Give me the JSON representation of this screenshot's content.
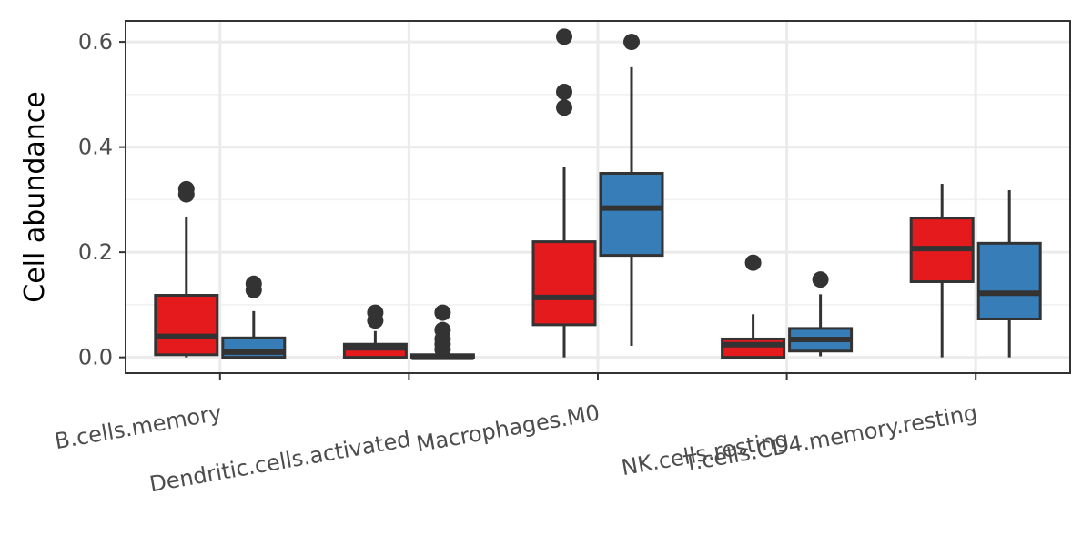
{
  "chart_data": {
    "type": "box",
    "ylabel": "Cell abundance",
    "xlabel": "",
    "ylim": [
      -0.03,
      0.64
    ],
    "y_ticks": [
      "0.0",
      "0.2",
      "0.4",
      "0.6"
    ],
    "y_tick_values": [
      0.0,
      0.2,
      0.4,
      0.6
    ],
    "grid": true,
    "legend": "none",
    "categories": [
      "B.cells.memory",
      "Dendritic.cells.activated",
      "Macrophages.M0",
      "NK.cells.resting",
      "T.cells.CD4.memory.resting"
    ],
    "series": [
      {
        "color": "#E41A1C",
        "boxes": [
          {
            "whisker_low": 0.0,
            "q1": 0.005,
            "median": 0.04,
            "q3": 0.118,
            "whisker_high": 0.267,
            "outliers": [
              0.31,
              0.32
            ]
          },
          {
            "whisker_low": 0.0,
            "q1": 0.0,
            "median": 0.018,
            "q3": 0.025,
            "whisker_high": 0.05,
            "outliers": [
              0.07,
              0.085
            ]
          },
          {
            "whisker_low": 0.0,
            "q1": 0.062,
            "median": 0.114,
            "q3": 0.22,
            "whisker_high": 0.362,
            "outliers": [
              0.475,
              0.505,
              0.61
            ]
          },
          {
            "whisker_low": 0.0,
            "q1": 0.0,
            "median": 0.024,
            "q3": 0.035,
            "whisker_high": 0.082,
            "outliers": [
              0.18
            ]
          },
          {
            "whisker_low": 0.0,
            "q1": 0.144,
            "median": 0.207,
            "q3": 0.265,
            "whisker_high": 0.33,
            "outliers": []
          }
        ]
      },
      {
        "color": "#377EB8",
        "boxes": [
          {
            "whisker_low": 0.0,
            "q1": 0.0,
            "median": 0.01,
            "q3": 0.037,
            "whisker_high": 0.088,
            "outliers": [
              0.128,
              0.14
            ]
          },
          {
            "whisker_low": 0.0,
            "q1": 0.0,
            "median": 0.0,
            "q3": 0.005,
            "whisker_high": 0.01,
            "outliers": [
              0.015,
              0.025,
              0.035,
              0.052,
              0.085
            ]
          },
          {
            "whisker_low": 0.022,
            "q1": 0.194,
            "median": 0.284,
            "q3": 0.35,
            "whisker_high": 0.552,
            "outliers": [
              0.6
            ]
          },
          {
            "whisker_low": 0.002,
            "q1": 0.012,
            "median": 0.034,
            "q3": 0.055,
            "whisker_high": 0.12,
            "outliers": [
              0.148
            ]
          },
          {
            "whisker_low": 0.0,
            "q1": 0.073,
            "median": 0.122,
            "q3": 0.217,
            "whisker_high": 0.318,
            "outliers": []
          }
        ]
      }
    ]
  }
}
